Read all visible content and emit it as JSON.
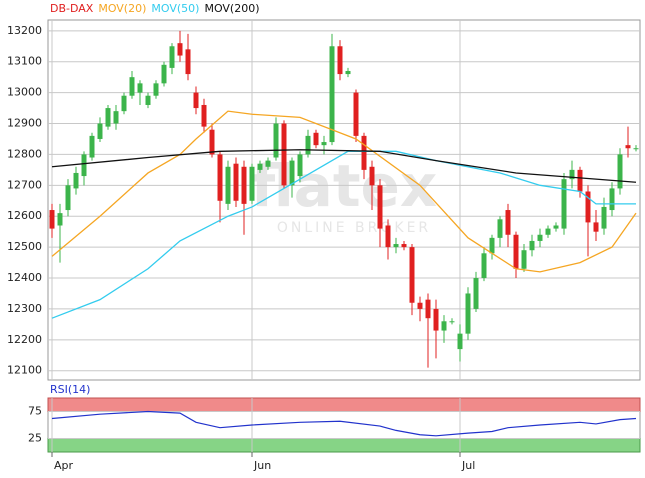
{
  "chart_data": {
    "type": "candlestick",
    "legend": [
      {
        "name": "DB-DAX",
        "color": "#e02020"
      },
      {
        "name": "MOV(20)",
        "color": "#f5a623"
      },
      {
        "name": "MOV(50)",
        "color": "#33ccee"
      },
      {
        "name": "MOV(200)",
        "color": "#111111"
      }
    ],
    "watermark": [
      "flatex",
      "ONLINE BROKER"
    ],
    "up_color": "#3cb44b",
    "down_color": "#e02020",
    "xlim": [
      -0.5,
      73.5
    ],
    "xticks": [
      {
        "value": 0,
        "label": "Apr"
      },
      {
        "value": 25,
        "label": "Jun"
      },
      {
        "value": 51,
        "label": "Jul"
      }
    ],
    "ylim": [
      12070,
      13235
    ],
    "yticks": [
      12100,
      12200,
      12300,
      12400,
      12500,
      12600,
      12700,
      12800,
      12900,
      13000,
      13100,
      13200
    ],
    "grid": true,
    "open": [
      12620,
      12570,
      12620,
      12690,
      12730,
      12790,
      12850,
      12890,
      12900,
      12940,
      12990,
      13000,
      12960,
      12990,
      13030,
      13080,
      13160,
      13140,
      13000,
      12960,
      12880,
      12800,
      12640,
      12770,
      12760,
      12650,
      12750,
      12760,
      12790,
      12900,
      12700,
      12730,
      12800,
      12870,
      12830,
      12840,
      13150,
      13060,
      13000,
      12860,
      12760,
      12700,
      12570,
      12500,
      12510,
      12500,
      12320,
      12330,
      12300,
      12230,
      12260,
      12170,
      12220,
      12300,
      12400,
      12480,
      12530,
      12620,
      12540,
      12430,
      12490,
      12520,
      12540,
      12560,
      12560,
      12720,
      12750,
      12680,
      12580,
      12560,
      12620,
      12690,
      12830,
      12820
    ],
    "high": [
      12640,
      12640,
      12720,
      12760,
      12810,
      12870,
      12920,
      12960,
      12960,
      13000,
      13070,
      13040,
      13000,
      13040,
      13100,
      13160,
      13200,
      13190,
      13020,
      12980,
      12900,
      12810,
      12780,
      12790,
      12780,
      12770,
      12780,
      12790,
      12920,
      12910,
      12790,
      12810,
      12880,
      12880,
      12860,
      13190,
      13170,
      13080,
      13010,
      12870,
      12780,
      12720,
      12590,
      12530,
      12520,
      12510,
      12340,
      12350,
      12330,
      12280,
      12270,
      12250,
      12370,
      12420,
      12500,
      12540,
      12600,
      12640,
      12550,
      12510,
      12540,
      12560,
      12570,
      12580,
      12740,
      12780,
      12760,
      12700,
      12620,
      12660,
      12710,
      12820,
      12890,
      12830
    ],
    "low": [
      12530,
      12450,
      12600,
      12670,
      12700,
      12780,
      12840,
      12880,
      12880,
      12930,
      12980,
      12960,
      12950,
      12980,
      13020,
      13060,
      13100,
      13040,
      12930,
      12870,
      12790,
      12580,
      12620,
      12630,
      12540,
      12640,
      12740,
      12750,
      12780,
      12690,
      12660,
      12710,
      12790,
      12820,
      12800,
      12830,
      13040,
      13050,
      12840,
      12720,
      12620,
      12500,
      12460,
      12480,
      12490,
      12280,
      12260,
      12110,
      12140,
      12190,
      12250,
      12130,
      12200,
      12290,
      12390,
      12460,
      12500,
      12500,
      12400,
      12420,
      12470,
      12500,
      12530,
      12550,
      12540,
      12690,
      12660,
      12470,
      12520,
      12540,
      12600,
      12670,
      12790,
      12810
    ],
    "close": [
      12560,
      12610,
      12700,
      12740,
      12800,
      12860,
      12900,
      12950,
      12940,
      12990,
      13050,
      13030,
      12990,
      13030,
      13090,
      13150,
      13120,
      13060,
      12950,
      12890,
      12800,
      12650,
      12760,
      12650,
      12640,
      12760,
      12770,
      12780,
      12900,
      12700,
      12780,
      12800,
      12860,
      12830,
      12840,
      13150,
      13060,
      13070,
      12860,
      12750,
      12700,
      12560,
      12500,
      12510,
      12500,
      12320,
      12300,
      12270,
      12230,
      12260,
      12260,
      12220,
      12350,
      12400,
      12480,
      12530,
      12590,
      12540,
      12430,
      12490,
      12520,
      12540,
      12560,
      12570,
      12720,
      12750,
      12680,
      12580,
      12550,
      12630,
      12690,
      12800,
      12820,
      12820
    ],
    "series": [
      {
        "name": "MOV(20)",
        "color": "#f5a623",
        "x": [
          0,
          6,
          12,
          16,
          18,
          22,
          25,
          31,
          38,
          46,
          52,
          58,
          61,
          66,
          70,
          73
        ],
        "values": [
          12470,
          12600,
          12740,
          12800,
          12850,
          12940,
          12930,
          12920,
          12850,
          12700,
          12530,
          12430,
          12420,
          12450,
          12500,
          12610
        ]
      },
      {
        "name": "MOV(50)",
        "color": "#33ccee",
        "x": [
          0,
          6,
          12,
          16,
          22,
          25,
          31,
          37,
          43,
          48,
          56,
          61,
          66,
          68,
          73
        ],
        "values": [
          12270,
          12330,
          12430,
          12520,
          12600,
          12630,
          12720,
          12810,
          12810,
          12780,
          12740,
          12700,
          12680,
          12640,
          12640
        ]
      },
      {
        "name": "MOV(200)",
        "color": "#111111",
        "x": [
          0,
          12,
          21,
          31,
          41,
          48,
          58,
          68,
          73
        ],
        "values": [
          12760,
          12790,
          12810,
          12815,
          12810,
          12780,
          12740,
          12720,
          12710
        ]
      }
    ],
    "rsi": {
      "label": "RSI(14)",
      "color": "#2233cc",
      "ylim": [
        0,
        100
      ],
      "yticks": [
        75,
        25
      ],
      "upper_band": [
        75,
        100
      ],
      "lower_band": [
        0,
        25
      ],
      "x": [
        0,
        6,
        12,
        16,
        18,
        21,
        25,
        31,
        36,
        41,
        43,
        46,
        48,
        52,
        55,
        57,
        61,
        66,
        68,
        71,
        73
      ],
      "values": [
        62,
        70,
        75,
        72,
        55,
        45,
        50,
        55,
        57,
        48,
        40,
        32,
        30,
        35,
        38,
        45,
        50,
        55,
        52,
        60,
        62
      ]
    }
  }
}
